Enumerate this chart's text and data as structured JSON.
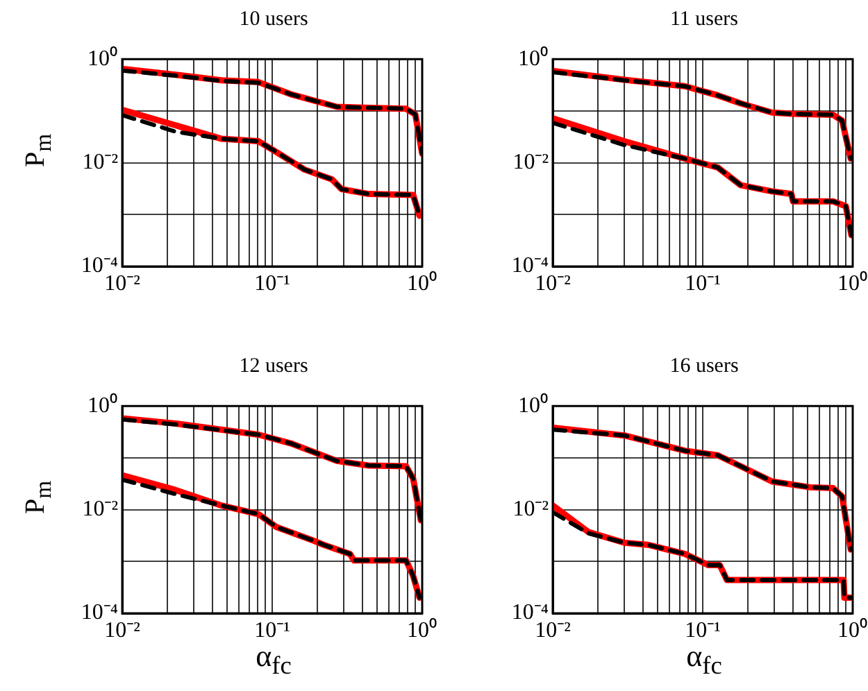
{
  "chart_data": [
    {
      "type": "line",
      "title": "10 users",
      "ylabel": "P$_{m}$",
      "log": "xy",
      "grid": true,
      "xlim": [
        0.01,
        1
      ],
      "ylim": [
        0.0001,
        1
      ],
      "xticks": [
        {
          "value": 0.01,
          "label": "10⁻²"
        },
        {
          "value": 0.02,
          "label": null
        },
        {
          "value": 0.03,
          "label": null
        },
        {
          "value": 0.04,
          "label": null
        },
        {
          "value": 0.05,
          "label": null
        },
        {
          "value": 0.06,
          "label": null
        },
        {
          "value": 0.07,
          "label": null
        },
        {
          "value": 0.08,
          "label": null
        },
        {
          "value": 0.09,
          "label": null
        },
        {
          "value": 0.1,
          "label": "10⁻¹"
        },
        {
          "value": 0.2,
          "label": null
        },
        {
          "value": 0.3,
          "label": null
        },
        {
          "value": 0.4,
          "label": null
        },
        {
          "value": 0.5,
          "label": null
        },
        {
          "value": 0.6,
          "label": null
        },
        {
          "value": 0.7,
          "label": null
        },
        {
          "value": 0.8,
          "label": null
        },
        {
          "value": 0.9,
          "label": null
        },
        {
          "value": 1,
          "label": "10⁰"
        }
      ],
      "yticks": [
        {
          "value": 0.0001,
          "label": "10⁻⁴"
        },
        {
          "value": 0.001,
          "label": null
        },
        {
          "value": 0.01,
          "label": "10⁻²"
        },
        {
          "value": 0.1,
          "label": null
        },
        {
          "value": 1,
          "label": "10⁰"
        }
      ],
      "series": [
        {
          "color": "#000000",
          "line_style": "dashed",
          "x": [
            0.01,
            0.0226,
            0.046,
            0.081,
            0.133,
            0.27,
            0.78,
            0.9,
            1
          ],
          "values": [
            0.6,
            0.48,
            0.38,
            0.35,
            0.21,
            0.12,
            0.11,
            0.086,
            0.015
          ]
        },
        {
          "color": "#ff0000",
          "line_style": "solid",
          "x": [
            0.01,
            0.0226,
            0.046,
            0.081,
            0.133,
            0.27,
            0.78,
            0.9,
            1
          ],
          "values": [
            0.65,
            0.5,
            0.39,
            0.36,
            0.21,
            0.12,
            0.11,
            0.086,
            0.015
          ]
        },
        {
          "color": "#000000",
          "line_style": "dashed",
          "x": [
            0.01,
            0.0226,
            0.046,
            0.081,
            0.107,
            0.164,
            0.25,
            0.29,
            0.44,
            0.87,
            0.96
          ],
          "values": [
            0.083,
            0.04,
            0.029,
            0.026,
            0.016,
            0.0074,
            0.0048,
            0.0031,
            0.0025,
            0.0024,
            0.00095
          ]
        },
        {
          "color": "#ff0000",
          "line_style": "solid",
          "x": [
            0.01,
            0.0226,
            0.046,
            0.081,
            0.107,
            0.164,
            0.25,
            0.29,
            0.44,
            0.87,
            0.96
          ],
          "values": [
            0.105,
            0.053,
            0.029,
            0.026,
            0.016,
            0.0074,
            0.0048,
            0.0031,
            0.0025,
            0.0024,
            0.00095
          ]
        }
      ]
    },
    {
      "type": "line",
      "title": "11 users",
      "log": "xy",
      "grid": true,
      "xlim": [
        0.01,
        1
      ],
      "ylim": [
        0.0001,
        1
      ],
      "xticks": [
        {
          "value": 0.01,
          "label": "10⁻²"
        },
        {
          "value": 0.02,
          "label": null
        },
        {
          "value": 0.03,
          "label": null
        },
        {
          "value": 0.04,
          "label": null
        },
        {
          "value": 0.05,
          "label": null
        },
        {
          "value": 0.06,
          "label": null
        },
        {
          "value": 0.07,
          "label": null
        },
        {
          "value": 0.08,
          "label": null
        },
        {
          "value": 0.09,
          "label": null
        },
        {
          "value": 0.1,
          "label": "10⁻¹"
        },
        {
          "value": 0.2,
          "label": null
        },
        {
          "value": 0.3,
          "label": null
        },
        {
          "value": 0.4,
          "label": null
        },
        {
          "value": 0.5,
          "label": null
        },
        {
          "value": 0.6,
          "label": null
        },
        {
          "value": 0.7,
          "label": null
        },
        {
          "value": 0.8,
          "label": null
        },
        {
          "value": 0.9,
          "label": null
        },
        {
          "value": 1,
          "label": "10⁰"
        }
      ],
      "yticks": [
        {
          "value": 0.0001,
          "label": "10⁻⁴"
        },
        {
          "value": 0.001,
          "label": null
        },
        {
          "value": 0.01,
          "label": "10⁻²"
        },
        {
          "value": 0.1,
          "label": null
        },
        {
          "value": 1,
          "label": "10⁰"
        }
      ],
      "series": [
        {
          "color": "#000000",
          "line_style": "dashed",
          "x": [
            0.01,
            0.03,
            0.076,
            0.126,
            0.179,
            0.29,
            0.39,
            0.74,
            0.85,
            0.97
          ],
          "values": [
            0.56,
            0.39,
            0.3,
            0.2,
            0.14,
            0.093,
            0.088,
            0.084,
            0.065,
            0.012
          ]
        },
        {
          "color": "#ff0000",
          "line_style": "solid",
          "x": [
            0.01,
            0.03,
            0.076,
            0.126,
            0.179,
            0.29,
            0.39,
            0.74,
            0.85,
            0.97
          ],
          "values": [
            0.59,
            0.4,
            0.3,
            0.2,
            0.14,
            0.093,
            0.088,
            0.084,
            0.065,
            0.012
          ]
        },
        {
          "color": "#000000",
          "line_style": "dashed",
          "x": [
            0.01,
            0.03,
            0.076,
            0.126,
            0.179,
            0.29,
            0.39,
            0.4,
            0.74,
            0.9,
            0.98
          ],
          "values": [
            0.059,
            0.022,
            0.012,
            0.0081,
            0.0037,
            0.0028,
            0.0025,
            0.0018,
            0.0018,
            0.00145,
            0.0004
          ]
        },
        {
          "color": "#ff0000",
          "line_style": "solid",
          "x": [
            0.01,
            0.03,
            0.076,
            0.126,
            0.179,
            0.29,
            0.39,
            0.4,
            0.74,
            0.9,
            0.98
          ],
          "values": [
            0.072,
            0.026,
            0.012,
            0.0081,
            0.0037,
            0.0028,
            0.0025,
            0.0018,
            0.0018,
            0.00145,
            0.0004
          ]
        }
      ]
    },
    {
      "type": "line",
      "title": "12 users",
      "xlabel": "α$_{fc}$",
      "ylabel": "P$_{m}$",
      "log": "xy",
      "grid": true,
      "xlim": [
        0.01,
        1
      ],
      "ylim": [
        0.0001,
        1
      ],
      "xticks": [
        {
          "value": 0.01,
          "label": "10⁻²"
        },
        {
          "value": 0.02,
          "label": null
        },
        {
          "value": 0.03,
          "label": null
        },
        {
          "value": 0.04,
          "label": null
        },
        {
          "value": 0.05,
          "label": null
        },
        {
          "value": 0.06,
          "label": null
        },
        {
          "value": 0.07,
          "label": null
        },
        {
          "value": 0.08,
          "label": null
        },
        {
          "value": 0.09,
          "label": null
        },
        {
          "value": 0.1,
          "label": "10⁻¹"
        },
        {
          "value": 0.2,
          "label": null
        },
        {
          "value": 0.3,
          "label": null
        },
        {
          "value": 0.4,
          "label": null
        },
        {
          "value": 0.5,
          "label": null
        },
        {
          "value": 0.6,
          "label": null
        },
        {
          "value": 0.7,
          "label": null
        },
        {
          "value": 0.8,
          "label": null
        },
        {
          "value": 0.9,
          "label": null
        },
        {
          "value": 1,
          "label": "10⁰"
        }
      ],
      "yticks": [
        {
          "value": 0.0001,
          "label": "10⁻⁴"
        },
        {
          "value": 0.001,
          "label": null
        },
        {
          "value": 0.01,
          "label": "10⁻²"
        },
        {
          "value": 0.1,
          "label": null
        },
        {
          "value": 1,
          "label": "10⁰"
        }
      ],
      "series": [
        {
          "color": "#000000",
          "line_style": "dashed",
          "x": [
            0.01,
            0.0226,
            0.081,
            0.133,
            0.27,
            0.44,
            0.78,
            0.87,
            0.98
          ],
          "values": [
            0.55,
            0.44,
            0.28,
            0.19,
            0.087,
            0.071,
            0.069,
            0.04,
            0.0062
          ]
        },
        {
          "color": "#ff0000",
          "line_style": "solid",
          "x": [
            0.01,
            0.0226,
            0.081,
            0.133,
            0.27,
            0.44,
            0.78,
            0.87,
            0.98
          ],
          "values": [
            0.58,
            0.46,
            0.28,
            0.19,
            0.087,
            0.071,
            0.069,
            0.04,
            0.0062
          ]
        },
        {
          "color": "#000000",
          "line_style": "dashed",
          "x": [
            0.01,
            0.0226,
            0.046,
            0.081,
            0.107,
            0.19,
            0.22,
            0.33,
            0.35,
            0.78,
            0.87,
            0.96
          ],
          "values": [
            0.038,
            0.02,
            0.012,
            0.0082,
            0.0046,
            0.0025,
            0.0021,
            0.0014,
            0.00105,
            0.00105,
            0.00053,
            0.0002
          ]
        },
        {
          "color": "#ff0000",
          "line_style": "solid",
          "x": [
            0.01,
            0.0226,
            0.046,
            0.081,
            0.107,
            0.19,
            0.22,
            0.33,
            0.35,
            0.78,
            0.87,
            0.96
          ],
          "values": [
            0.046,
            0.024,
            0.012,
            0.0082,
            0.0046,
            0.0025,
            0.0021,
            0.0014,
            0.00105,
            0.00105,
            0.00053,
            0.0002
          ]
        }
      ]
    },
    {
      "type": "line",
      "title": "16 users",
      "xlabel": "α$_{fc}$",
      "log": "xy",
      "grid": true,
      "xlim": [
        0.01,
        1
      ],
      "ylim": [
        0.0001,
        1
      ],
      "xticks": [
        {
          "value": 0.01,
          "label": "10⁻²"
        },
        {
          "value": 0.02,
          "label": null
        },
        {
          "value": 0.03,
          "label": null
        },
        {
          "value": 0.04,
          "label": null
        },
        {
          "value": 0.05,
          "label": null
        },
        {
          "value": 0.06,
          "label": null
        },
        {
          "value": 0.07,
          "label": null
        },
        {
          "value": 0.08,
          "label": null
        },
        {
          "value": 0.09,
          "label": null
        },
        {
          "value": 0.1,
          "label": "10⁻¹"
        },
        {
          "value": 0.2,
          "label": null
        },
        {
          "value": 0.3,
          "label": null
        },
        {
          "value": 0.4,
          "label": null
        },
        {
          "value": 0.5,
          "label": null
        },
        {
          "value": 0.6,
          "label": null
        },
        {
          "value": 0.7,
          "label": null
        },
        {
          "value": 0.8,
          "label": null
        },
        {
          "value": 0.9,
          "label": null
        },
        {
          "value": 1,
          "label": "10⁰"
        }
      ],
      "yticks": [
        {
          "value": 0.0001,
          "label": "10⁻⁴"
        },
        {
          "value": 0.001,
          "label": null
        },
        {
          "value": 0.01,
          "label": "10⁻²"
        },
        {
          "value": 0.1,
          "label": null
        },
        {
          "value": 1,
          "label": "10⁰"
        }
      ],
      "series": [
        {
          "color": "#000000",
          "line_style": "dashed",
          "x": [
            0.01,
            0.03,
            0.076,
            0.126,
            0.179,
            0.29,
            0.52,
            0.74,
            0.85,
            0.97
          ],
          "values": [
            0.35,
            0.27,
            0.137,
            0.112,
            0.069,
            0.035,
            0.027,
            0.026,
            0.018,
            0.0017
          ]
        },
        {
          "color": "#ff0000",
          "line_style": "solid",
          "x": [
            0.01,
            0.03,
            0.076,
            0.126,
            0.179,
            0.29,
            0.52,
            0.74,
            0.85,
            0.97
          ],
          "values": [
            0.38,
            0.27,
            0.137,
            0.112,
            0.069,
            0.035,
            0.027,
            0.026,
            0.018,
            0.0017
          ]
        },
        {
          "color": "#000000",
          "line_style": "dashed",
          "x": [
            0.01,
            0.0173,
            0.03,
            0.043,
            0.076,
            0.109,
            0.13,
            0.145,
            0.87,
            0.88,
            0.97
          ],
          "values": [
            0.0089,
            0.0035,
            0.0023,
            0.0021,
            0.0014,
            0.00085,
            0.00085,
            0.00044,
            0.00044,
            0.0002,
            0.0002
          ]
        },
        {
          "color": "#ff0000",
          "line_style": "solid",
          "x": [
            0.01,
            0.0173,
            0.03,
            0.043,
            0.076,
            0.109,
            0.13,
            0.145,
            0.87,
            0.88,
            0.97
          ],
          "values": [
            0.012,
            0.0037,
            0.0023,
            0.0021,
            0.0014,
            0.00085,
            0.00085,
            0.00044,
            0.00044,
            0.0002,
            0.0002
          ]
        }
      ]
    }
  ]
}
